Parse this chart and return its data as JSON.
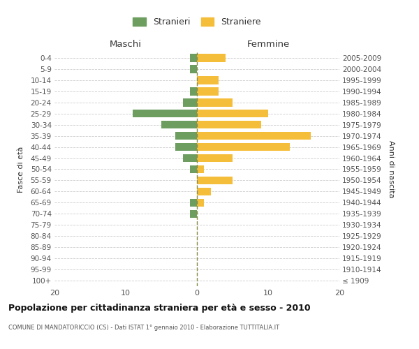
{
  "age_groups": [
    "100+",
    "95-99",
    "90-94",
    "85-89",
    "80-84",
    "75-79",
    "70-74",
    "65-69",
    "60-64",
    "55-59",
    "50-54",
    "45-49",
    "40-44",
    "35-39",
    "30-34",
    "25-29",
    "20-24",
    "15-19",
    "10-14",
    "5-9",
    "0-4"
  ],
  "birth_years": [
    "≤ 1909",
    "1910-1914",
    "1915-1919",
    "1920-1924",
    "1925-1929",
    "1930-1934",
    "1935-1939",
    "1940-1944",
    "1945-1949",
    "1950-1954",
    "1955-1959",
    "1960-1964",
    "1965-1969",
    "1970-1974",
    "1975-1979",
    "1980-1984",
    "1985-1989",
    "1990-1994",
    "1995-1999",
    "2000-2004",
    "2005-2009"
  ],
  "maschi": [
    0,
    0,
    0,
    0,
    0,
    0,
    1,
    1,
    0,
    0,
    1,
    2,
    3,
    3,
    5,
    9,
    2,
    1,
    0,
    1,
    1
  ],
  "femmine": [
    0,
    0,
    0,
    0,
    0,
    0,
    0,
    1,
    2,
    5,
    1,
    5,
    13,
    16,
    9,
    10,
    5,
    3,
    3,
    0,
    4
  ],
  "maschi_color": "#6d9e5f",
  "femmine_color": "#f5be3a",
  "title": "Popolazione per cittadinanza straniera per età e sesso - 2010",
  "subtitle": "COMUNE DI MANDATORICCIO (CS) - Dati ISTAT 1° gennaio 2010 - Elaborazione TUTTITALIA.IT",
  "xlabel_left": "Maschi",
  "xlabel_right": "Femmine",
  "ylabel_left": "Fasce di età",
  "ylabel_right": "Anni di nascita",
  "xlim": 20,
  "legend_stranieri": "Stranieri",
  "legend_straniere": "Straniere",
  "bg_color": "#ffffff",
  "grid_color": "#cccccc",
  "text_color": "#555555",
  "dashed_line_color": "#888844"
}
